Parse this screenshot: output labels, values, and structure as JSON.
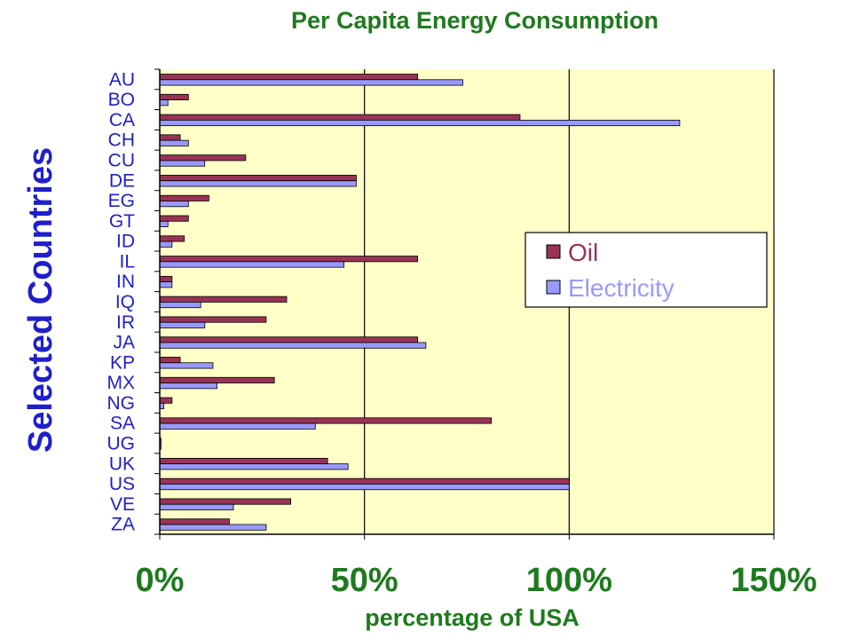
{
  "colors": {
    "title": "#1e7a1e",
    "axis_text": "#1e7a1e",
    "category_text": "#1f1fcc",
    "plot_bg": "#ffffc8",
    "oil_fill": "#993355",
    "electricity_fill": "#9999ff"
  },
  "chart_data": {
    "type": "bar",
    "orientation": "horizontal",
    "title": "Per Capita Energy Consumption",
    "xlabel": "percentage of USA",
    "ylabel": "Selected Countries",
    "xlim": [
      0,
      150
    ],
    "xticks": [
      "0%",
      "50%",
      "100%",
      "150%"
    ],
    "xtick_values": [
      0,
      50,
      100,
      150
    ],
    "grid": "vertical",
    "legend_position": "right",
    "categories": [
      "AU",
      "BO",
      "CA",
      "CH",
      "CU",
      "DE",
      "EG",
      "GT",
      "ID",
      "IL",
      "IN",
      "IQ",
      "IR",
      "JA",
      "KP",
      "MX",
      "NG",
      "SA",
      "UG",
      "UK",
      "US",
      "VE",
      "ZA"
    ],
    "series": [
      {
        "name": "Oil",
        "values": [
          63,
          7,
          88,
          5,
          21,
          48,
          12,
          7,
          6,
          63,
          3,
          31,
          26,
          63,
          5,
          28,
          3,
          81,
          0.3,
          41,
          100,
          32,
          17
        ]
      },
      {
        "name": "Electricity",
        "values": [
          74,
          2,
          127,
          7,
          11,
          48,
          7,
          2,
          3,
          45,
          3,
          10,
          11,
          65,
          13,
          14,
          1,
          38,
          0.3,
          46,
          100,
          18,
          26
        ]
      }
    ]
  }
}
